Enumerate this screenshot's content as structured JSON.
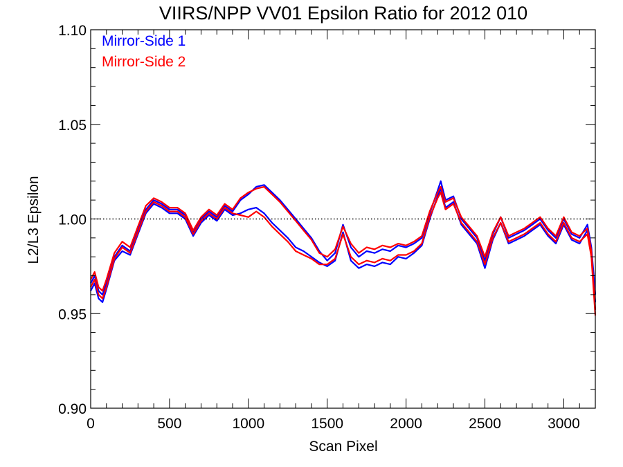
{
  "chart_data": {
    "type": "line",
    "title": "VIIRS/NPP VV01 Epsilon Ratio for 2012 010",
    "xlabel": "Scan Pixel",
    "ylabel": "L2/L3 Epsilon",
    "xlim": [
      0,
      3200
    ],
    "ylim": [
      0.9,
      1.1
    ],
    "x_ticks": [
      0,
      500,
      1000,
      1500,
      2000,
      2500,
      3000
    ],
    "y_ticks": [
      0.9,
      0.95,
      1.0,
      1.05,
      1.1
    ],
    "x_tick_labels": [
      "0",
      "500",
      "1000",
      "1500",
      "2000",
      "2500",
      "3000"
    ],
    "y_tick_labels": [
      "0.90",
      "0.95",
      "1.00",
      "1.05",
      "1.10"
    ],
    "reference_line": {
      "y": 1.0,
      "style": "dotted"
    },
    "legend_position": "top-left",
    "grid": false,
    "x": [
      0,
      25,
      50,
      75,
      100,
      150,
      200,
      250,
      300,
      350,
      400,
      450,
      500,
      550,
      600,
      650,
      700,
      750,
      800,
      850,
      900,
      950,
      1000,
      1050,
      1100,
      1150,
      1200,
      1250,
      1300,
      1350,
      1400,
      1450,
      1500,
      1550,
      1600,
      1650,
      1700,
      1750,
      1800,
      1850,
      1900,
      1950,
      2000,
      2050,
      2100,
      2150,
      2200,
      2220,
      2250,
      2300,
      2350,
      2400,
      2450,
      2500,
      2550,
      2600,
      2650,
      2700,
      2750,
      2800,
      2850,
      2900,
      2950,
      3000,
      3050,
      3100,
      3150,
      3175,
      3200
    ],
    "series": [
      {
        "name": "Mirror-Side 1",
        "color": "#0000ff",
        "lines": [
          [
            0.966,
            0.97,
            0.962,
            0.96,
            0.966,
            0.98,
            0.986,
            0.983,
            0.994,
            1.005,
            1.01,
            1.008,
            1.005,
            1.005,
            1.002,
            0.993,
            1.0,
            1.004,
            1.001,
            1.007,
            1.004,
            1.01,
            1.013,
            1.017,
            1.018,
            1.014,
            1.01,
            1.005,
            1.0,
            0.995,
            0.99,
            0.983,
            0.978,
            0.982,
            0.997,
            0.985,
            0.98,
            0.983,
            0.982,
            0.984,
            0.983,
            0.986,
            0.985,
            0.987,
            0.99,
            1.003,
            1.015,
            1.02,
            1.01,
            1.012,
            1.0,
            0.995,
            0.99,
            0.978,
            0.992,
            1.001,
            0.99,
            0.992,
            0.994,
            0.997,
            1.0,
            0.994,
            0.99,
            1.0,
            0.992,
            0.99,
            0.997,
            0.985,
            0.96
          ],
          [
            0.962,
            0.966,
            0.958,
            0.956,
            0.963,
            0.978,
            0.983,
            0.981,
            0.992,
            1.003,
            1.008,
            1.006,
            1.003,
            1.003,
            1.0,
            0.991,
            0.998,
            1.002,
            0.999,
            1.005,
            1.002,
            1.003,
            1.005,
            1.006,
            1.003,
            0.998,
            0.994,
            0.99,
            0.985,
            0.983,
            0.98,
            0.977,
            0.975,
            0.978,
            0.993,
            0.978,
            0.974,
            0.976,
            0.975,
            0.977,
            0.976,
            0.98,
            0.979,
            0.982,
            0.986,
            1.0,
            1.012,
            1.016,
            1.006,
            1.009,
            0.997,
            0.992,
            0.987,
            0.974,
            0.989,
            0.998,
            0.987,
            0.989,
            0.991,
            0.994,
            0.997,
            0.991,
            0.987,
            0.997,
            0.989,
            0.987,
            0.994,
            0.982,
            0.956
          ]
        ]
      },
      {
        "name": "Mirror-Side 2",
        "color": "#ff0000",
        "lines": [
          [
            0.968,
            0.972,
            0.964,
            0.962,
            0.968,
            0.982,
            0.988,
            0.985,
            0.996,
            1.007,
            1.011,
            1.009,
            1.006,
            1.006,
            1.003,
            0.994,
            1.001,
            1.005,
            1.002,
            1.008,
            1.005,
            1.011,
            1.014,
            1.016,
            1.017,
            1.013,
            1.009,
            1.004,
            0.999,
            0.994,
            0.989,
            0.982,
            0.98,
            0.984,
            0.996,
            0.987,
            0.982,
            0.985,
            0.984,
            0.986,
            0.985,
            0.987,
            0.986,
            0.988,
            0.991,
            1.004,
            1.014,
            1.017,
            1.009,
            1.011,
            1.001,
            0.996,
            0.991,
            0.98,
            0.993,
            1.001,
            0.991,
            0.993,
            0.995,
            0.998,
            1.001,
            0.995,
            0.991,
            1.001,
            0.993,
            0.991,
            0.995,
            0.983,
            0.952
          ],
          [
            0.964,
            0.968,
            0.96,
            0.958,
            0.964,
            0.979,
            0.985,
            0.982,
            0.993,
            1.004,
            1.009,
            1.007,
            1.004,
            1.004,
            1.001,
            0.992,
            0.999,
            1.003,
            1.0,
            1.006,
            1.003,
            1.002,
            1.001,
            1.004,
            1.001,
            0.996,
            0.992,
            0.988,
            0.983,
            0.981,
            0.979,
            0.976,
            0.976,
            0.979,
            0.992,
            0.98,
            0.976,
            0.978,
            0.977,
            0.979,
            0.978,
            0.981,
            0.981,
            0.983,
            0.987,
            1.001,
            1.011,
            1.014,
            1.005,
            1.008,
            0.998,
            0.993,
            0.988,
            0.976,
            0.99,
            0.998,
            0.988,
            0.99,
            0.992,
            0.995,
            0.998,
            0.992,
            0.988,
            0.998,
            0.99,
            0.988,
            0.992,
            0.98,
            0.949
          ]
        ]
      }
    ]
  }
}
